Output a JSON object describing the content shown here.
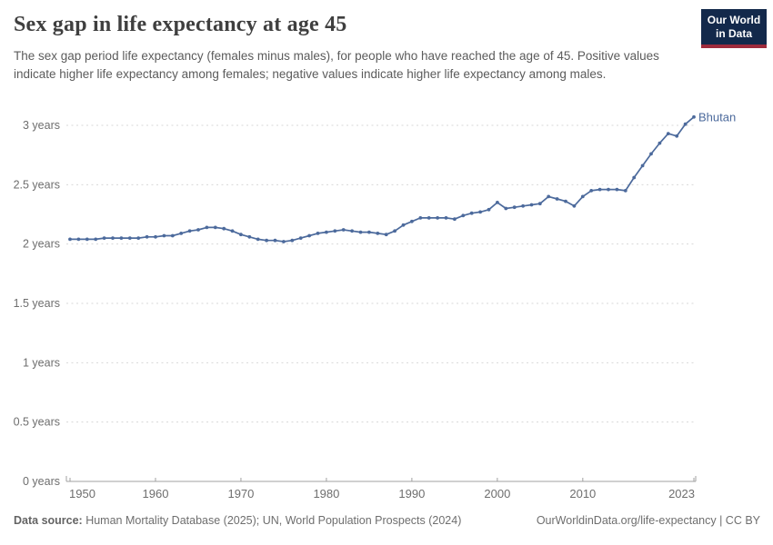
{
  "header": {
    "title": "Sex gap in life expectancy at age 45",
    "subtitle": "The sex gap period life expectancy (females minus males), for people who have reached the age of 45. Positive values indicate higher life expectancy among females; negative values indicate higher life expectancy among males.",
    "logo": {
      "line1": "Our World",
      "line2": "in Data"
    }
  },
  "chart_data": {
    "type": "line",
    "title": "Sex gap in life expectancy at age 45",
    "xlabel": "",
    "ylabel": "",
    "x_range": [
      1950,
      2023
    ],
    "x_step": 1,
    "xlim": [
      1950,
      2023
    ],
    "ylim": [
      0,
      3.2
    ],
    "grid": "horizontal dashed",
    "x_ticks": [
      1950,
      1960,
      1970,
      1980,
      1990,
      2000,
      2010,
      2023
    ],
    "y_ticks": [
      {
        "value": 0,
        "label": "0 years"
      },
      {
        "value": 0.5,
        "label": "0.5 years"
      },
      {
        "value": 1,
        "label": "1 years"
      },
      {
        "value": 1.5,
        "label": "1.5 years"
      },
      {
        "value": 2,
        "label": "2 years"
      },
      {
        "value": 2.5,
        "label": "2.5 years"
      },
      {
        "value": 3,
        "label": "3 years"
      }
    ],
    "series": [
      {
        "name": "Bhutan",
        "color": "#4C6A9C",
        "values": [
          2.04,
          2.04,
          2.04,
          2.04,
          2.05,
          2.05,
          2.05,
          2.05,
          2.05,
          2.06,
          2.06,
          2.07,
          2.07,
          2.09,
          2.11,
          2.12,
          2.14,
          2.14,
          2.13,
          2.11,
          2.08,
          2.06,
          2.04,
          2.03,
          2.03,
          2.02,
          2.03,
          2.05,
          2.07,
          2.09,
          2.1,
          2.11,
          2.12,
          2.11,
          2.1,
          2.1,
          2.09,
          2.08,
          2.11,
          2.16,
          2.19,
          2.22,
          2.22,
          2.22,
          2.22,
          2.21,
          2.24,
          2.26,
          2.27,
          2.29,
          2.35,
          2.3,
          2.31,
          2.32,
          2.33,
          2.34,
          2.4,
          2.38,
          2.36,
          2.32,
          2.4,
          2.45,
          2.46,
          2.46,
          2.46,
          2.45,
          2.56,
          2.66,
          2.76,
          2.85,
          2.93,
          2.91,
          3.01,
          3.07
        ]
      }
    ],
    "end_label": "Bhutan",
    "legend_position": "end-of-line"
  },
  "footer": {
    "data_source_label": "Data source:",
    "data_source_text": " Human Mortality Database (2025); UN, World Population Prospects (2024)",
    "link_text": "OurWorldinData.org/life-expectancy | CC BY"
  },
  "colors": {
    "line": "#4C6A9C",
    "logo_navy": "#13294B",
    "logo_red": "#9E2B3C",
    "grid": "#d7d7d7",
    "axis": "#a1a1a1",
    "tick_text": "#6e6e6e"
  }
}
